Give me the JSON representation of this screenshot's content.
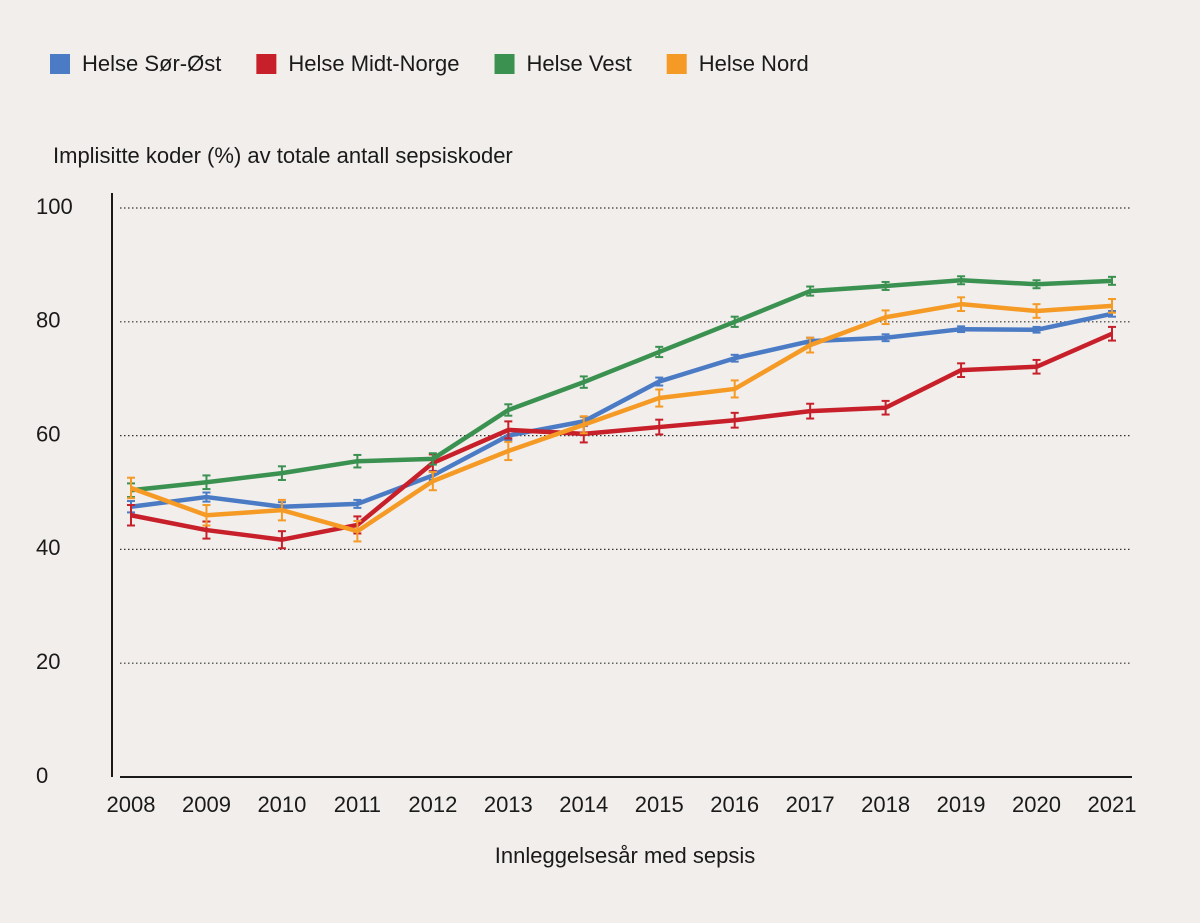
{
  "chart_data": {
    "type": "line",
    "y_label": "Implisitte koder (%) av totale antall sepsiskoder",
    "x_label": "Innleggelsesår med sepsis",
    "categories": [
      "2008",
      "2009",
      "2010",
      "2011",
      "2012",
      "2013",
      "2014",
      "2015",
      "2016",
      "2017",
      "2018",
      "2019",
      "2020",
      "2021"
    ],
    "ylim": [
      0,
      100
    ],
    "yticks": [
      0,
      20,
      40,
      60,
      80,
      100
    ],
    "grid": true,
    "legend": "top",
    "series": [
      {
        "name": "Helse Sør-Øst",
        "color": "#4a7bc4",
        "values": [
          47.5,
          49.2,
          47.5,
          48,
          53,
          60,
          62.5,
          69.5,
          73.6,
          76.6,
          77.2,
          78.7,
          78.6,
          81.4
        ],
        "errors": [
          1,
          0.8,
          0.8,
          0.7,
          0.8,
          0.8,
          0.8,
          0.7,
          0.6,
          0.6,
          0.6,
          0.5,
          0.5,
          0.5
        ]
      },
      {
        "name": "Helse Midt-Norge",
        "color": "#c8202a",
        "values": [
          46,
          43.4,
          41.7,
          44.3,
          55.2,
          61,
          60.3,
          61.5,
          62.7,
          64.3,
          64.9,
          71.5,
          72.1,
          77.9
        ],
        "errors": [
          1.8,
          1.5,
          1.5,
          1.5,
          1.5,
          1.5,
          1.5,
          1.3,
          1.3,
          1.3,
          1.2,
          1.2,
          1.2,
          1.2
        ]
      },
      {
        "name": "Helse Vest",
        "color": "#3a9150",
        "values": [
          50.4,
          51.8,
          53.4,
          55.5,
          55.9,
          64.5,
          69.4,
          74.7,
          80,
          85.4,
          86.3,
          87.3,
          86.6,
          87.2
        ],
        "errors": [
          1.2,
          1.2,
          1.2,
          1.1,
          1,
          1,
          1,
          0.9,
          0.9,
          0.8,
          0.7,
          0.7,
          0.7,
          0.7
        ]
      },
      {
        "name": "Helse Nord",
        "color": "#f59a25",
        "values": [
          50.8,
          46,
          46.9,
          43.2,
          52,
          57.3,
          61.9,
          66.6,
          68.2,
          75.9,
          80.8,
          83.1,
          81.9,
          82.8
        ],
        "errors": [
          1.8,
          1.8,
          1.8,
          1.8,
          1.6,
          1.6,
          1.5,
          1.5,
          1.5,
          1.3,
          1.2,
          1.2,
          1.2,
          1.2
        ]
      }
    ]
  }
}
